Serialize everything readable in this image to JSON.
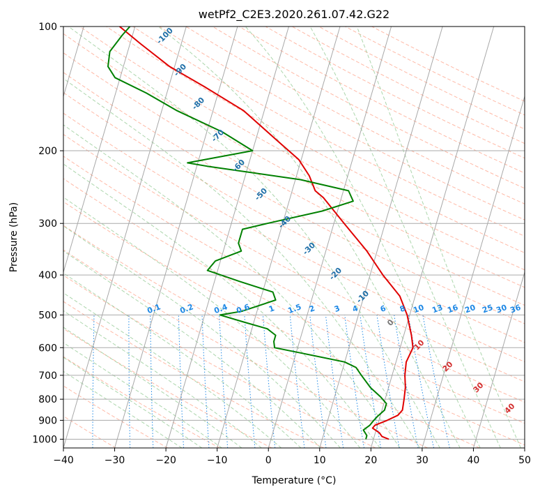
{
  "chart_data": {
    "type": "line",
    "subtype": "skew-t log-p",
    "title": "wetPf2_C2E3.2020.261.07.42.G22",
    "xlabel": "Temperature (°C)",
    "ylabel": "Pressure (hPa)",
    "xlim": [
      -40,
      50
    ],
    "ylim": [
      1050,
      100
    ],
    "y_scale": "log",
    "x_ticks": [
      -40,
      -30,
      -20,
      -10,
      0,
      10,
      20,
      30,
      40,
      50
    ],
    "y_ticks": [
      100,
      200,
      300,
      400,
      500,
      600,
      700,
      800,
      900,
      1000
    ],
    "grid": true,
    "series": [
      {
        "color": "#e00000",
        "points": [
          {
            "t": 23.0,
            "p": 1000
          },
          {
            "t": 21.5,
            "p": 985
          },
          {
            "t": 20.8,
            "p": 965
          },
          {
            "t": 19.2,
            "p": 940
          },
          {
            "t": 19.5,
            "p": 925
          },
          {
            "t": 21.6,
            "p": 900
          },
          {
            "t": 23.4,
            "p": 875
          },
          {
            "t": 24.0,
            "p": 850
          },
          {
            "t": 23.7,
            "p": 800
          },
          {
            "t": 23.3,
            "p": 750
          },
          {
            "t": 22.5,
            "p": 700
          },
          {
            "t": 22.0,
            "p": 650
          },
          {
            "t": 22.5,
            "p": 600
          },
          {
            "t": 21.5,
            "p": 560
          },
          {
            "t": 19.5,
            "p": 500
          },
          {
            "t": 17.0,
            "p": 450
          },
          {
            "t": 12.5,
            "p": 400
          },
          {
            "t": 8.0,
            "p": 350
          },
          {
            "t": 2.0,
            "p": 300
          },
          {
            "t": -3.5,
            "p": 260
          },
          {
            "t": -5.5,
            "p": 250
          },
          {
            "t": -7.5,
            "p": 230
          },
          {
            "t": -10.5,
            "p": 210
          },
          {
            "t": -15.5,
            "p": 190
          },
          {
            "t": -24.0,
            "p": 160
          },
          {
            "t": -33.0,
            "p": 140
          },
          {
            "t": -41.0,
            "p": 125
          },
          {
            "t": -48.0,
            "p": 110
          },
          {
            "t": -53.0,
            "p": 100
          }
        ]
      },
      {
        "color": "#008000",
        "points": [
          {
            "t": 18.5,
            "p": 1000
          },
          {
            "t": 18.5,
            "p": 980
          },
          {
            "t": 17.5,
            "p": 950
          },
          {
            "t": 18.5,
            "p": 925
          },
          {
            "t": 19.0,
            "p": 900
          },
          {
            "t": 19.5,
            "p": 880
          },
          {
            "t": 20.5,
            "p": 850
          },
          {
            "t": 20.5,
            "p": 820
          },
          {
            "t": 19.0,
            "p": 790
          },
          {
            "t": 16.5,
            "p": 750
          },
          {
            "t": 14.0,
            "p": 700
          },
          {
            "t": 12.5,
            "p": 670
          },
          {
            "t": 10.0,
            "p": 650
          },
          {
            "t": 1.5,
            "p": 620
          },
          {
            "t": -4.5,
            "p": 600
          },
          {
            "t": -5.0,
            "p": 580
          },
          {
            "t": -5.0,
            "p": 560
          },
          {
            "t": -7.0,
            "p": 540
          },
          {
            "t": -12.0,
            "p": 520
          },
          {
            "t": -17.0,
            "p": 500
          },
          {
            "t": -13.0,
            "p": 490
          },
          {
            "t": -7.0,
            "p": 460
          },
          {
            "t": -8.0,
            "p": 440
          },
          {
            "t": -15.0,
            "p": 415
          },
          {
            "t": -22.0,
            "p": 390
          },
          {
            "t": -21.0,
            "p": 370
          },
          {
            "t": -16.5,
            "p": 350
          },
          {
            "t": -17.5,
            "p": 335
          },
          {
            "t": -17.5,
            "p": 310
          },
          {
            "t": -13.0,
            "p": 300
          },
          {
            "t": -3.0,
            "p": 280
          },
          {
            "t": 2.5,
            "p": 265
          },
          {
            "t": 1.0,
            "p": 250
          },
          {
            "t": -9.0,
            "p": 235
          },
          {
            "t": -28.0,
            "p": 218
          },
          {
            "t": -32.0,
            "p": 214
          },
          {
            "t": -27.0,
            "p": 208
          },
          {
            "t": -20.0,
            "p": 200
          },
          {
            "t": -27.0,
            "p": 180
          },
          {
            "t": -37.0,
            "p": 160
          },
          {
            "t": -44.0,
            "p": 145
          },
          {
            "t": -51.0,
            "p": 133
          },
          {
            "t": -53.0,
            "p": 125
          },
          {
            "t": -53.5,
            "p": 115
          },
          {
            "t": -52.0,
            "p": 105
          },
          {
            "t": -51.0,
            "p": 100
          }
        ]
      }
    ],
    "dry_adiabat_labels": [
      "-100",
      "-90",
      "-80",
      "-70",
      "-60",
      "-50",
      "-40",
      "-30",
      "-20",
      "-10",
      "0"
    ],
    "moist_adiabat_labels": [
      "10",
      "20",
      "30",
      "40"
    ],
    "mixing_ratio_labels": [
      "0.1",
      "0.2",
      "0.4",
      "0.6",
      "1",
      "1.5",
      "2",
      "3",
      "4",
      "6",
      "8",
      "10",
      "13",
      "16",
      "20",
      "25",
      "30",
      "36"
    ],
    "colors": {
      "temperature": "#e00000",
      "dewpoint": "#008000",
      "dry_adiabats": "#ff9b80",
      "moist_adiabats": "#90c890",
      "mixing_ratio": "#1e88e5",
      "isotherms": "#888888",
      "label_blue": "#1f6fa8",
      "label_red": "#d32f2f"
    }
  }
}
